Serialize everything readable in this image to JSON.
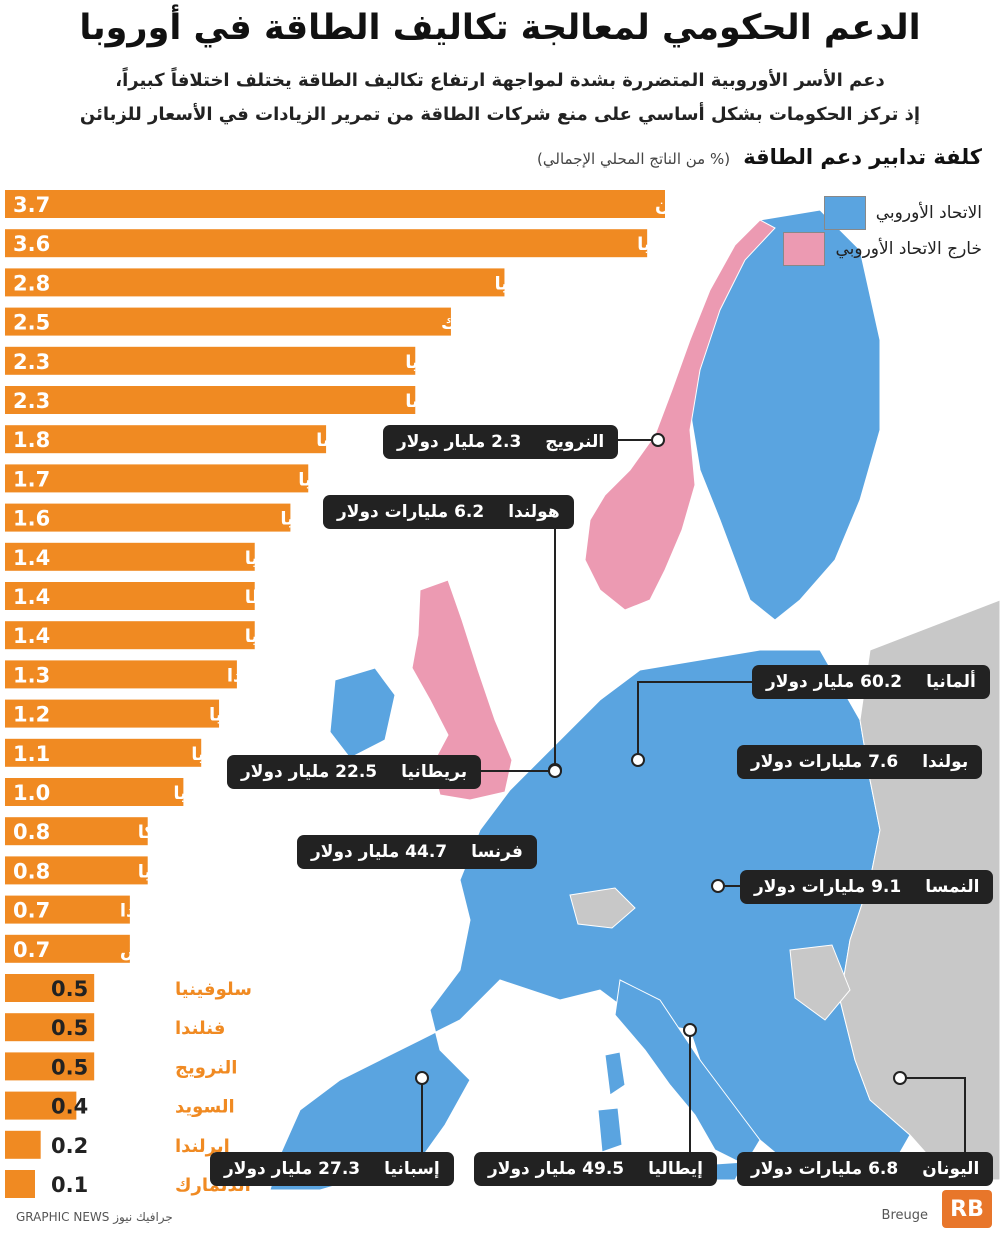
{
  "header": {
    "title": "الدعم الحكومي لمعالجة تكاليف الطاقة في أوروبا",
    "subtitle_line1": "دعم الأسر الأوروبية المتضررة بشدة لمواجهة ارتفاع تكاليف الطاقة يختلف اختلافاً كبيراً،",
    "subtitle_line2": "إذ تركز الحكومات بشكل أساسي على منع شركات الطاقة من تمرير الزيادات في الأسعار للزبائن"
  },
  "legend": {
    "eu_label": "الاتحاد الأوروبي",
    "non_eu_label": "خارج الاتحاد الأوروبي"
  },
  "colors": {
    "bar": "#f08a22",
    "eu": "#5aa4e0",
    "non_eu": "#ec9ab2",
    "other": "#c8c8c8",
    "sea": "#ffffff",
    "callout_bg": "#222222"
  },
  "chart_data": {
    "type": "bar",
    "title": "كلفة تدابير دعم الطاقة",
    "unit_label": "(% من الناتج المحلي الإجمالي)",
    "orientation": "horizontal",
    "xlim": [
      0,
      3.7
    ],
    "categories": [
      "اليونان",
      "ليتوانيا",
      "إيطاليا",
      "جمهورية التشيك",
      "إسبانيا",
      "النمسا",
      "فرنسا",
      "ألمانيا",
      "رومانيا",
      "بريطانيا",
      "مالطا",
      "لاتفيا",
      "بولندا",
      "بلغاريا",
      "كرواتيا",
      "سلوفاكيا",
      "بلجيكا",
      "إستونيا",
      "هولندا",
      "قبرص",
      "سلوفينيا",
      "فنلندا",
      "النرويج",
      "السويد",
      "إيرلندا",
      "الدنمارك"
    ],
    "values": [
      3.7,
      3.6,
      2.8,
      2.5,
      2.3,
      2.3,
      1.8,
      1.7,
      1.6,
      1.4,
      1.4,
      1.4,
      1.3,
      1.2,
      1.1,
      1.0,
      0.8,
      0.8,
      0.7,
      0.7,
      0.5,
      0.5,
      0.5,
      0.4,
      0.2,
      0.1
    ],
    "value_labels": [
      "3.7",
      "3.6",
      "2.8",
      "2.5",
      "2.3",
      "2.3",
      "1.8",
      "1.7",
      "1.6",
      "1.4",
      "1.4",
      "1.4",
      "1.3",
      "1.2",
      "1.1",
      "1.0",
      "0.8",
      "0.8",
      "0.7",
      "0.7",
      "0.5",
      "0.5",
      "0.5",
      "0.4",
      "0.2",
      "0.1"
    ],
    "map_callouts": [
      {
        "country": "النرويج",
        "amount": "2.3 مليار دولار"
      },
      {
        "country": "هولندا",
        "amount": "6.2 مليارات دولار"
      },
      {
        "country": "ألمانيا",
        "amount": "60.2 مليار دولار"
      },
      {
        "country": "بولندا",
        "amount": "7.6 مليارات دولار"
      },
      {
        "country": "بريطانيا",
        "amount": "22.5 مليار دولار"
      },
      {
        "country": "فرنسا",
        "amount": "44.7 مليار دولار"
      },
      {
        "country": "النمسا",
        "amount": "9.1 مليارات دولار"
      },
      {
        "country": "إسبانيا",
        "amount": "27.3 مليار دولار"
      },
      {
        "country": "إيطاليا",
        "amount": "49.5 مليار دولار"
      },
      {
        "country": "اليونان",
        "amount": "6.8 مليارات دولار"
      }
    ]
  },
  "footer": {
    "source": "GRAPHIC NEWS جرافيك نيوز",
    "credit": "Breuge",
    "corner_logo": "RB"
  }
}
